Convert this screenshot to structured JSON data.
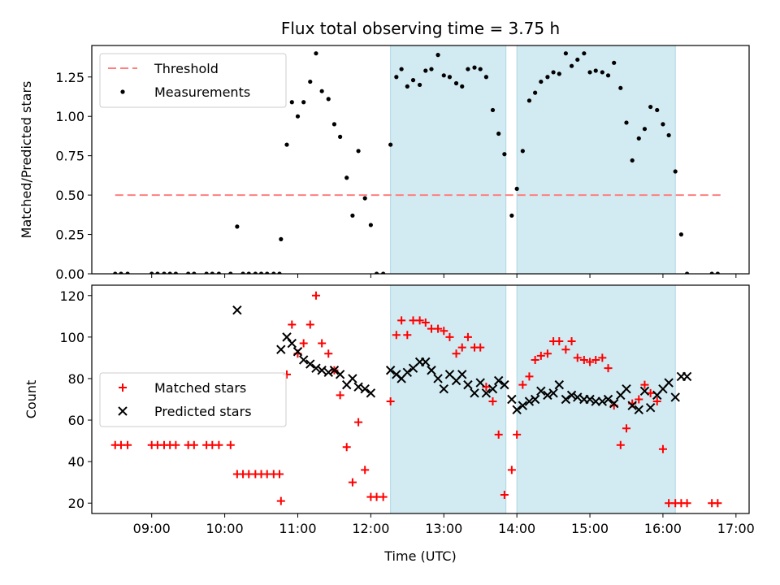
{
  "title": "Flux total observing time = 3.75 h",
  "colors": {
    "threshold": "#ff7f7f",
    "measurement": "#000000",
    "matched": "#ff0000",
    "predicted": "#000000",
    "shade": "#add8e6"
  },
  "chart_data": [
    {
      "type": "scatter",
      "panel": "top",
      "title": "Flux total observing time = 3.75 h",
      "xlabel": "",
      "ylabel": "Matched/Predicted stars",
      "xlim": [
        8.18,
        17.18
      ],
      "ylim": [
        0,
        1.45
      ],
      "x_ticks": [
        9,
        10,
        11,
        12,
        13,
        14,
        15,
        16,
        17
      ],
      "x_tick_labels": [
        "",
        "",
        "",
        "",
        "",
        "",
        "",
        "",
        ""
      ],
      "y_ticks": [
        0,
        0.25,
        0.5,
        0.75,
        1.0,
        1.25
      ],
      "y_tick_labels": [
        "0.00",
        "0.25",
        "0.50",
        "0.75",
        "1.00",
        "1.25"
      ],
      "grid": false,
      "legend": {
        "position": "upper left",
        "entries": [
          "Threshold",
          "Measurements"
        ]
      },
      "shaded_x_ranges": [
        [
          12.27,
          13.85
        ],
        [
          14.0,
          16.17
        ]
      ],
      "series": [
        {
          "name": "Threshold",
          "style": "dashed-line",
          "x": [
            8.5,
            16.83
          ],
          "y": [
            0.5,
            0.5
          ]
        },
        {
          "name": "Measurements",
          "style": "dots",
          "x": [
            8.5,
            8.58,
            8.67,
            9.0,
            9.08,
            9.17,
            9.25,
            9.33,
            9.5,
            9.58,
            9.75,
            9.83,
            9.92,
            10.08,
            10.17,
            10.25,
            10.33,
            10.42,
            10.5,
            10.58,
            10.67,
            10.75,
            10.77,
            10.85,
            10.92,
            11.0,
            11.08,
            11.17,
            11.25,
            11.33,
            11.42,
            11.5,
            11.58,
            11.67,
            11.75,
            11.83,
            11.92,
            12.0,
            12.08,
            12.17,
            12.27,
            12.35,
            12.42,
            12.5,
            12.58,
            12.67,
            12.75,
            12.83,
            12.92,
            13.0,
            13.08,
            13.17,
            13.25,
            13.33,
            13.42,
            13.5,
            13.58,
            13.67,
            13.75,
            13.83,
            13.93,
            14.0,
            14.08,
            14.17,
            14.25,
            14.33,
            14.42,
            14.5,
            14.58,
            14.67,
            14.75,
            14.83,
            14.92,
            15.0,
            15.08,
            15.17,
            15.25,
            15.33,
            15.42,
            15.5,
            15.58,
            15.67,
            15.75,
            15.83,
            15.92,
            16.0,
            16.08,
            16.17,
            16.25,
            16.33,
            16.67,
            16.75
          ],
          "y": [
            0,
            0,
            0,
            0,
            0,
            0,
            0,
            0,
            0,
            0,
            0,
            0,
            0,
            0,
            0.3,
            0,
            0,
            0,
            0,
            0,
            0,
            0,
            0.22,
            0.82,
            1.09,
            1.0,
            1.09,
            1.22,
            1.4,
            1.16,
            1.11,
            0.95,
            0.87,
            0.61,
            0.37,
            0.78,
            0.48,
            0.31,
            0,
            0,
            0.82,
            1.25,
            1.3,
            1.19,
            1.23,
            1.2,
            1.29,
            1.3,
            1.39,
            1.26,
            1.25,
            1.21,
            1.19,
            1.3,
            1.31,
            1.3,
            1.25,
            1.04,
            0.89,
            0.76,
            0.37,
            0.54,
            0.78,
            1.1,
            1.15,
            1.22,
            1.25,
            1.28,
            1.27,
            1.4,
            1.32,
            1.36,
            1.4,
            1.28,
            1.29,
            1.28,
            1.26,
            1.34,
            1.18,
            0.96,
            0.72,
            0.86,
            0.92,
            1.06,
            1.04,
            0.95,
            0.88,
            0.65,
            0.25,
            0,
            0,
            0
          ]
        }
      ]
    },
    {
      "type": "scatter",
      "panel": "bottom",
      "xlabel": "Time (UTC)",
      "ylabel": "Count",
      "xlim": [
        8.18,
        17.18
      ],
      "ylim": [
        15,
        125
      ],
      "x_ticks": [
        9,
        10,
        11,
        12,
        13,
        14,
        15,
        16,
        17
      ],
      "x_tick_labels": [
        "09:00",
        "10:00",
        "11:00",
        "12:00",
        "13:00",
        "14:00",
        "15:00",
        "16:00",
        "17:00"
      ],
      "y_ticks": [
        20,
        40,
        60,
        80,
        100,
        120
      ],
      "y_tick_labels": [
        "20",
        "40",
        "60",
        "80",
        "100",
        "120"
      ],
      "grid": false,
      "legend": {
        "position": "center left",
        "entries": [
          "Matched stars",
          "Predicted stars"
        ]
      },
      "shaded_x_ranges": [
        [
          12.27,
          13.85
        ],
        [
          14.0,
          16.17
        ]
      ],
      "series": [
        {
          "name": "Matched stars",
          "marker": "+",
          "x": [
            8.5,
            8.58,
            8.67,
            9.0,
            9.08,
            9.17,
            9.25,
            9.33,
            9.5,
            9.58,
            9.75,
            9.83,
            9.92,
            10.08,
            10.17,
            10.25,
            10.33,
            10.42,
            10.5,
            10.58,
            10.67,
            10.75,
            10.77,
            10.85,
            10.92,
            11.0,
            11.08,
            11.17,
            11.25,
            11.33,
            11.42,
            11.5,
            11.58,
            11.67,
            11.75,
            11.83,
            11.92,
            12.0,
            12.08,
            12.17,
            12.27,
            12.35,
            12.42,
            12.5,
            12.58,
            12.67,
            12.75,
            12.83,
            12.92,
            13.0,
            13.08,
            13.17,
            13.25,
            13.33,
            13.42,
            13.5,
            13.58,
            13.67,
            13.75,
            13.83,
            13.93,
            14.0,
            14.08,
            14.17,
            14.25,
            14.33,
            14.42,
            14.5,
            14.58,
            14.67,
            14.75,
            14.83,
            14.92,
            15.0,
            15.08,
            15.17,
            15.25,
            15.33,
            15.42,
            15.5,
            15.58,
            15.67,
            15.75,
            15.83,
            15.92,
            16.0,
            16.08,
            16.17,
            16.25,
            16.33,
            16.67,
            16.75
          ],
          "y": [
            48,
            48,
            48,
            48,
            48,
            48,
            48,
            48,
            48,
            48,
            48,
            48,
            48,
            48,
            34,
            34,
            34,
            34,
            34,
            34,
            34,
            34,
            21,
            82,
            106,
            92,
            97,
            106,
            120,
            97,
            92,
            84,
            72,
            47,
            30,
            59,
            36,
            23,
            23,
            23,
            69,
            101,
            108,
            101,
            108,
            108,
            107,
            104,
            104,
            103,
            100,
            92,
            95,
            100,
            95,
            95,
            76,
            69,
            53,
            24,
            36,
            53,
            77,
            81,
            89,
            91,
            92,
            98,
            98,
            94,
            98,
            90,
            89,
            88,
            89,
            90,
            85,
            67,
            48,
            56,
            68,
            70,
            77,
            73,
            69,
            46,
            20,
            20,
            20,
            20,
            20,
            20
          ]
        },
        {
          "name": "Predicted stars",
          "marker": "x",
          "x": [
            10.17,
            10.77,
            10.85,
            10.92,
            11.0,
            11.08,
            11.17,
            11.25,
            11.33,
            11.42,
            11.5,
            11.58,
            11.67,
            11.75,
            11.83,
            11.92,
            12.0,
            12.27,
            12.35,
            12.42,
            12.5,
            12.58,
            12.67,
            12.75,
            12.83,
            12.92,
            13.0,
            13.08,
            13.17,
            13.25,
            13.33,
            13.42,
            13.5,
            13.58,
            13.67,
            13.75,
            13.83,
            13.93,
            14.0,
            14.08,
            14.17,
            14.25,
            14.33,
            14.42,
            14.5,
            14.58,
            14.67,
            14.75,
            14.83,
            14.92,
            15.0,
            15.08,
            15.17,
            15.25,
            15.33,
            15.42,
            15.5,
            15.58,
            15.67,
            15.75,
            15.83,
            15.92,
            16.0,
            16.08,
            16.17,
            16.25,
            16.33
          ],
          "y": [
            113,
            94,
            100,
            97,
            93,
            89,
            87,
            85,
            84,
            83,
            84,
            82,
            77,
            80,
            76,
            75,
            73,
            84,
            82,
            80,
            83,
            85,
            88,
            88,
            84,
            80,
            75,
            82,
            79,
            82,
            77,
            73,
            78,
            73,
            75,
            79,
            77,
            70,
            65,
            67,
            69,
            70,
            74,
            72,
            73,
            77,
            70,
            72,
            71,
            70,
            70,
            69,
            69,
            70,
            68,
            72,
            75,
            67,
            65,
            74,
            66,
            72,
            75,
            78,
            71,
            81,
            81
          ]
        }
      ]
    }
  ]
}
